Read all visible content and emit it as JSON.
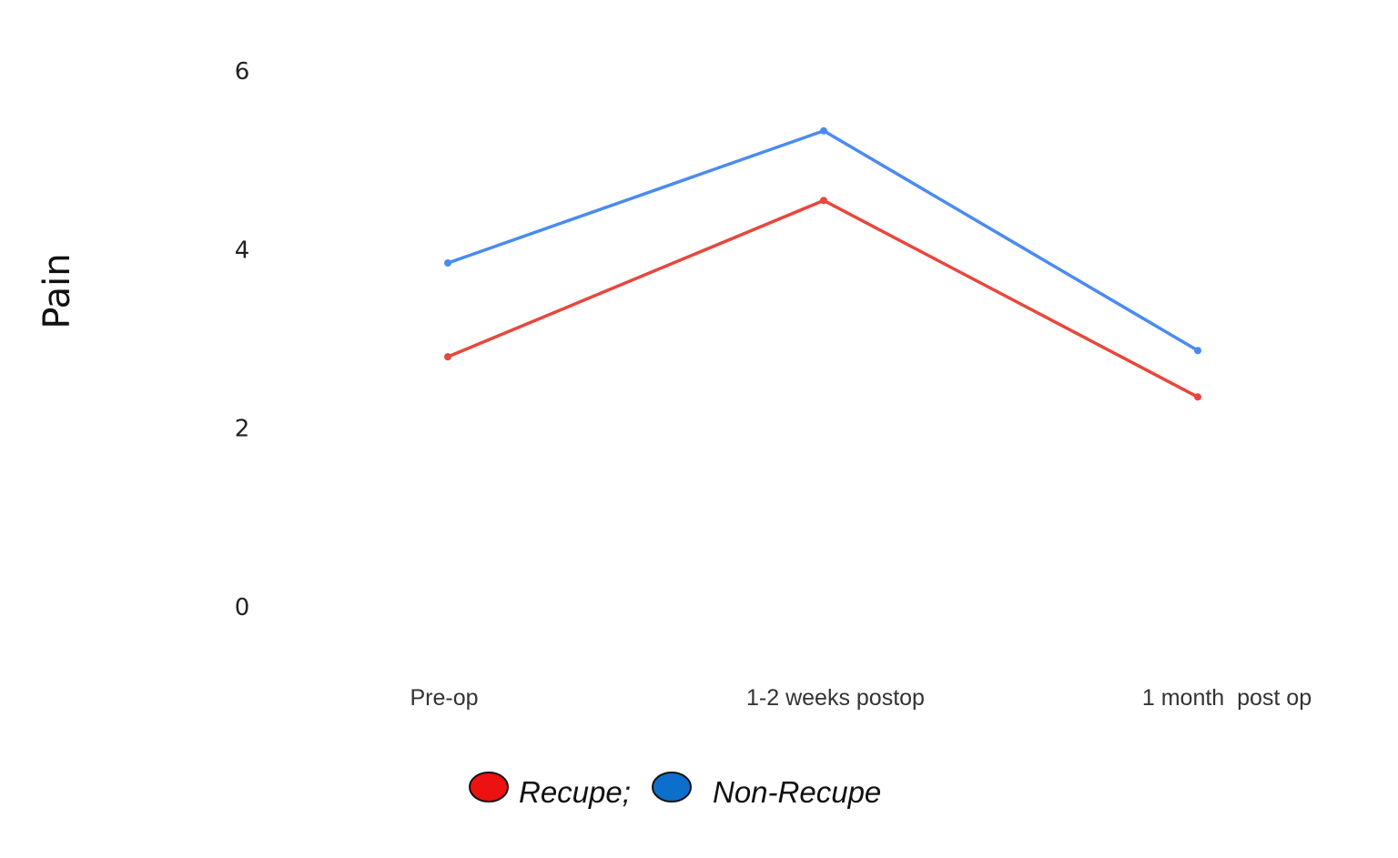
{
  "chart_data": {
    "type": "line",
    "categories": [
      "Pre-op",
      "1-2 weeks postop",
      "1 month  post op"
    ],
    "ylabel": "Pain",
    "xlabel": "",
    "ylim": [
      0,
      6
    ],
    "yticks": [
      0,
      2,
      4,
      6
    ],
    "grid": false,
    "legend_position": "bottom-center",
    "series": [
      {
        "name": "Recupe;",
        "values": [
          2.8,
          4.55,
          2.35
        ],
        "color": "#e8473c",
        "legend_color": "#ee1111"
      },
      {
        "name": "Non-Recupe",
        "values": [
          3.85,
          5.33,
          2.87
        ],
        "color": "#4b8bf0",
        "legend_color": "#0c6fcc"
      }
    ]
  }
}
